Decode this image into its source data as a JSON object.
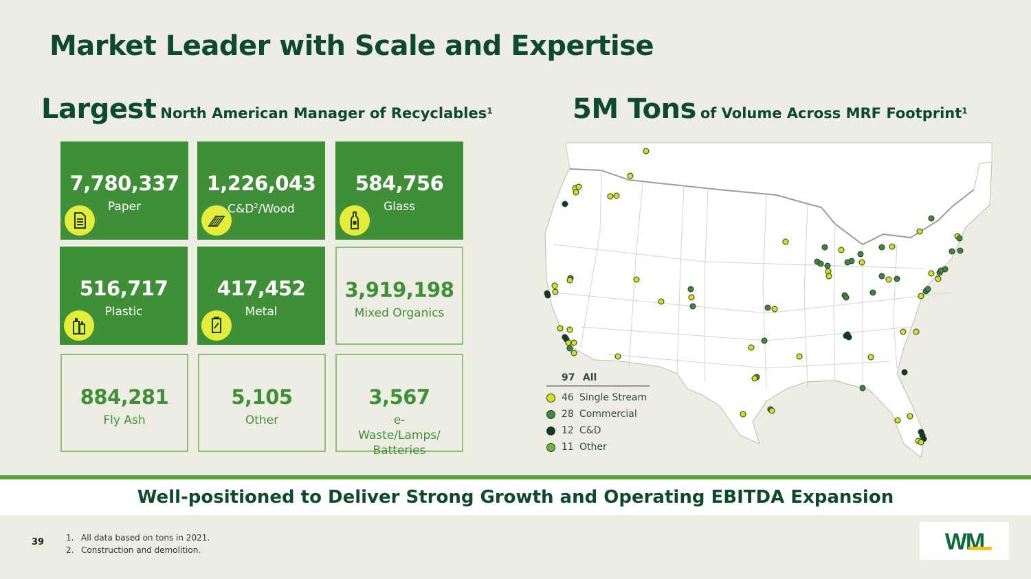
{
  "title": "Market Leader with Scale and Expertise",
  "left_heading": {
    "big": "Largest",
    "small": "North American Manager of Recyclables",
    "sup": "1"
  },
  "right_heading": {
    "big": "5M Tons",
    "small": "of Volume Across MRF Footprint",
    "sup": "1"
  },
  "tiles": [
    {
      "value": "7,780,337",
      "label": "Paper",
      "style": "solid",
      "icon": "paper-icon"
    },
    {
      "value": "1,226,043",
      "label": "C&D",
      "label_sup": "2",
      "label_suffix": "/Wood",
      "style": "solid",
      "icon": "wood-icon"
    },
    {
      "value": "584,756",
      "label": "Glass",
      "style": "solid",
      "icon": "bottle-icon"
    },
    {
      "value": "516,717",
      "label": "Plastic",
      "style": "solid",
      "icon": "plastic-bottles-icon"
    },
    {
      "value": "417,452",
      "label": "Metal",
      "style": "solid",
      "icon": "can-icon"
    },
    {
      "value": "3,919,198",
      "label": "Mixed Organics",
      "style": "outline"
    },
    {
      "value": "884,281",
      "label": "Fly Ash",
      "style": "outline"
    },
    {
      "value": "5,105",
      "label": "Other",
      "style": "outline"
    },
    {
      "value": "3,567",
      "label": "e-Waste/Lamps/ Batteries",
      "style": "outline"
    }
  ],
  "legend": {
    "total": "97",
    "total_label": "All",
    "items": [
      {
        "count": "46",
        "label": "Single Stream",
        "color": "#d4e21e"
      },
      {
        "count": "28",
        "label": "Commercial",
        "color": "#3d8a3c"
      },
      {
        "count": "12",
        "label": "C&D",
        "color": "#0f3d24"
      },
      {
        "count": "11",
        "label": "Other",
        "color": "#6fb53a"
      }
    ]
  },
  "banner": "Well-positioned to Deliver Strong Growth and Operating EBITDA Expansion",
  "page_number": "39",
  "footnotes": [
    {
      "num": "1.",
      "text": "All data based on tons in 2021."
    },
    {
      "num": "2.",
      "text": "Construction and demolition."
    }
  ],
  "logo_text": "WM",
  "colors": {
    "dark_green": "#0d4a2b",
    "tile_green": "#3f8f39",
    "accent_yellow": "#e4ee3a",
    "band_green": "#57a33e"
  }
}
